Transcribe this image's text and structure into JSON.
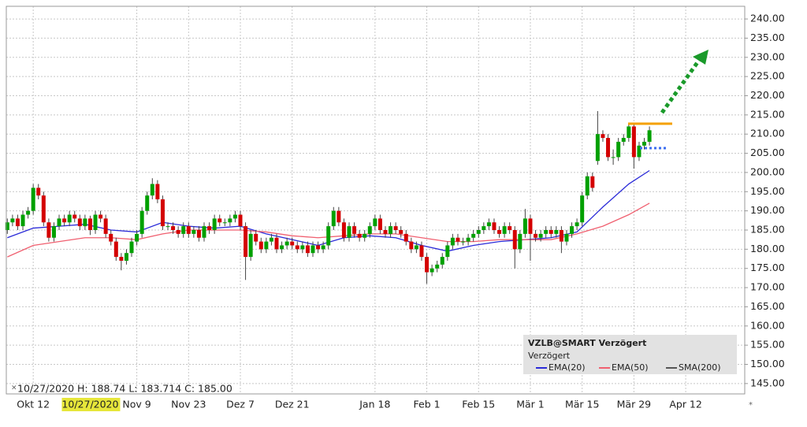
{
  "chart_data": {
    "type": "candlestick",
    "open": [
      185,
      187,
      188,
      186,
      189,
      190,
      196,
      194,
      187,
      183,
      186,
      188,
      187,
      189,
      188,
      186,
      188,
      185,
      189,
      188,
      184,
      182,
      178,
      177,
      179,
      182,
      184,
      190,
      194,
      197,
      193,
      186,
      186,
      185,
      184,
      186,
      184,
      185,
      183,
      186,
      185,
      188,
      187,
      187,
      188,
      189,
      186,
      178,
      184,
      182,
      180,
      182,
      183,
      180,
      181,
      182,
      181,
      180,
      181,
      179,
      181,
      180,
      181,
      186,
      190,
      187,
      183,
      186,
      184,
      183,
      184,
      186,
      188,
      185,
      184,
      186,
      185,
      184,
      182,
      180,
      181,
      178,
      174,
      175,
      176,
      178,
      181,
      183,
      182,
      182,
      183,
      184,
      185,
      186,
      187,
      185,
      184,
      186,
      185,
      180,
      184,
      188,
      184,
      183,
      184,
      185,
      184,
      185,
      182,
      184,
      186,
      187,
      194,
      199,
      203,
      210,
      209,
      204,
      204,
      208,
      209,
      212,
      204,
      207,
      208
    ],
    "high": [
      188,
      189,
      189,
      190,
      191,
      197,
      197,
      195,
      188,
      187,
      189,
      189,
      190,
      190,
      189,
      189,
      188.74,
      190,
      190,
      189,
      185,
      183,
      179,
      180,
      183,
      185,
      191,
      195,
      198.5,
      198,
      194,
      187,
      187,
      186,
      187,
      187,
      186,
      186,
      187,
      187,
      189,
      189,
      188,
      189,
      190,
      190,
      187,
      185,
      185,
      183,
      183,
      184,
      184,
      182,
      183,
      183,
      182,
      182,
      182,
      182,
      182,
      182,
      187,
      191,
      191,
      188,
      187,
      187,
      185,
      185,
      187,
      189,
      189,
      186,
      187,
      187,
      186,
      185,
      183,
      182,
      182,
      179,
      176,
      177,
      179,
      182,
      184,
      184,
      183,
      184,
      185,
      186,
      187,
      188,
      188,
      186,
      187,
      187,
      186,
      185,
      190.5,
      189,
      185,
      185,
      186,
      186,
      186,
      186,
      185,
      187,
      188,
      195,
      200,
      200,
      216,
      211,
      210,
      206,
      209,
      210,
      213,
      213,
      208,
      209,
      212
    ],
    "low": [
      184,
      186,
      185,
      185,
      188,
      189,
      193,
      186,
      182,
      182,
      185,
      186,
      186,
      187,
      185,
      185,
      183.714,
      184,
      187,
      183,
      181,
      177,
      174.5,
      176,
      178,
      181,
      183,
      189,
      193,
      192,
      185,
      185,
      184,
      183,
      183,
      183,
      183,
      182,
      182,
      184,
      184,
      186,
      186,
      186,
      187,
      185,
      172,
      177,
      181,
      179,
      179,
      181,
      179,
      179,
      180,
      180,
      179,
      179,
      178,
      178,
      179,
      179,
      180,
      185,
      186,
      182,
      182,
      183,
      182,
      182,
      183,
      185,
      184,
      183,
      183,
      184,
      183,
      181,
      179,
      179,
      177,
      171,
      173,
      174,
      175,
      177,
      180,
      181,
      181,
      181,
      182,
      183,
      184,
      185,
      184,
      183,
      183,
      184,
      175,
      179,
      183,
      177,
      182,
      182,
      183,
      183,
      183,
      179,
      181,
      183,
      185,
      186,
      193,
      195,
      202,
      208,
      203,
      202,
      203,
      207,
      208,
      201,
      203,
      206,
      207
    ],
    "close": [
      187,
      188,
      186,
      189,
      190,
      196,
      194,
      187,
      183,
      186,
      188,
      187,
      189,
      188,
      186,
      188,
      185,
      189,
      188,
      184,
      182,
      178,
      177,
      179,
      182,
      184,
      190,
      194,
      197,
      193,
      186,
      186,
      185,
      184,
      186,
      184,
      185,
      183,
      186,
      185,
      188,
      187,
      187,
      188,
      189,
      186,
      178,
      184,
      182,
      180,
      182,
      183,
      180,
      181,
      182,
      181,
      180,
      181,
      179,
      181,
      180,
      181,
      186,
      190,
      187,
      183,
      186,
      184,
      183,
      184,
      186,
      188,
      185,
      184,
      186,
      185,
      184,
      182,
      180,
      181,
      178,
      174,
      175,
      176,
      178,
      181,
      183,
      182,
      182,
      183,
      184,
      185,
      186,
      187,
      185,
      184,
      186,
      185,
      180,
      184,
      188,
      184,
      183,
      184,
      185,
      184,
      185,
      182,
      184,
      186,
      187,
      194,
      199,
      196,
      210,
      209,
      204,
      204,
      208,
      209,
      212,
      204,
      207,
      208,
      211
    ],
    "up_color": "#00a000",
    "down_color": "#d40000",
    "indicators": [
      {
        "name": "EMA(20)",
        "color": "#2a2ad8",
        "x": [
          0,
          5,
          10,
          15,
          20,
          25,
          30,
          35,
          40,
          45,
          50,
          55,
          60,
          65,
          70,
          75,
          80,
          85,
          90,
          95,
          100,
          105,
          110,
          115,
          120,
          124
        ],
        "values": [
          183,
          185.5,
          186,
          186.5,
          185,
          184.5,
          187,
          186,
          185.5,
          186,
          184,
          182.5,
          181,
          183,
          183.5,
          183,
          181,
          179.5,
          181,
          182,
          182.5,
          183,
          184.5,
          191,
          197,
          200.5
        ]
      },
      {
        "name": "EMA(50)",
        "color": "#f06070",
        "x": [
          0,
          5,
          10,
          15,
          20,
          25,
          30,
          35,
          40,
          45,
          50,
          55,
          60,
          65,
          70,
          75,
          80,
          85,
          90,
          95,
          100,
          105,
          110,
          115,
          120,
          124
        ],
        "values": [
          178,
          181,
          182,
          183,
          183,
          182.5,
          184,
          185,
          185,
          185,
          184.5,
          183.5,
          183,
          183.5,
          184,
          184,
          183,
          182,
          182,
          182.5,
          182.5,
          182.5,
          184,
          186,
          189,
          192
        ]
      },
      {
        "name": "SMA(200)",
        "color": "#555555"
      }
    ],
    "legend_title": "VZLB@SMART Verzögert",
    "legend_subtitle": "Verzögert",
    "crosshair_info": "10/27/2020 H: 188.74 L: 183.714 C: 185.00",
    "crosshair_date": {
      "value": 16,
      "label": "10/27/2020"
    },
    "xlim": [
      -0.2,
      142.4
    ],
    "xticks": [
      {
        "value": 5,
        "label": "Okt 12"
      },
      {
        "value": 25,
        "label": "Nov 9"
      },
      {
        "value": 35,
        "label": "Nov 23"
      },
      {
        "value": 45,
        "label": "Dez 7"
      },
      {
        "value": 55,
        "label": "Dez 21"
      },
      {
        "value": 71,
        "label": "Jan 18"
      },
      {
        "value": 81,
        "label": "Feb 1"
      },
      {
        "value": 91,
        "label": "Feb 15"
      },
      {
        "value": 101,
        "label": "Mär 1"
      },
      {
        "value": 111,
        "label": "Mär 15"
      },
      {
        "value": 121,
        "label": "Mär 29"
      },
      {
        "value": 131,
        "label": "Apr 12"
      }
    ],
    "ylim": [
      142.3,
      243.3
    ],
    "yticks": [
      {
        "value": 145,
        "label": "145.00"
      },
      {
        "value": 150,
        "label": "150.00"
      },
      {
        "value": 155,
        "label": "155.00"
      },
      {
        "value": 160,
        "label": "160.00"
      },
      {
        "value": 165,
        "label": "165.00"
      },
      {
        "value": 170,
        "label": "170.00"
      },
      {
        "value": 175,
        "label": "175.00"
      },
      {
        "value": 180,
        "label": "180.00"
      },
      {
        "value": 185,
        "label": "185.00"
      },
      {
        "value": 190,
        "label": "190.00"
      },
      {
        "value": 195,
        "label": "195.00"
      },
      {
        "value": 200,
        "label": "200.00"
      },
      {
        "value": 205,
        "label": "205.00"
      },
      {
        "value": 210,
        "label": "210.00"
      },
      {
        "value": 215,
        "label": "215.00"
      },
      {
        "value": 220,
        "label": "220.00"
      },
      {
        "value": 225,
        "label": "225.00"
      },
      {
        "value": 230,
        "label": "230.00"
      },
      {
        "value": 235,
        "label": "235.00"
      },
      {
        "value": 240,
        "label": "240.00"
      }
    ],
    "grid": true
  }
}
